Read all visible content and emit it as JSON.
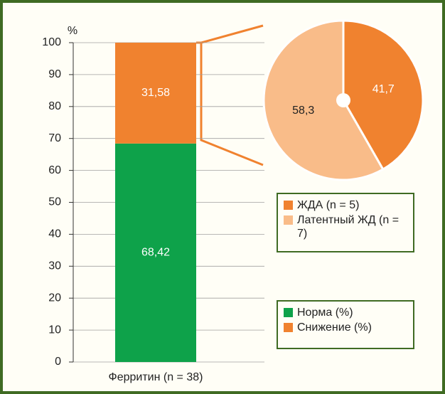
{
  "chart_data": [
    {
      "type": "bar",
      "y_label": "%",
      "categories": [
        "Ферритин (n = 38)"
      ],
      "stacked": true,
      "grid": true,
      "series": [
        {
          "name": "Норма (%)",
          "color": "#0ea24a",
          "values": [
            68.42
          ],
          "value_labels": [
            "68,42"
          ]
        },
        {
          "name": "Снижение (%)",
          "color": "#f0822f",
          "values": [
            31.58
          ],
          "value_labels": [
            "31,58"
          ]
        }
      ],
      "ylim": [
        0,
        100
      ],
      "yticks": [
        0,
        10,
        20,
        30,
        40,
        50,
        60,
        70,
        80,
        90,
        100
      ]
    },
    {
      "type": "pie",
      "categories": [
        "ЖДА (n = 5)",
        "Латентный ЖД (n = 7)"
      ],
      "values": [
        41.7,
        58.3
      ],
      "value_labels": [
        "41,7",
        "58,3"
      ],
      "colors": [
        "#f0822f",
        "#f9bc89"
      ]
    }
  ]
}
